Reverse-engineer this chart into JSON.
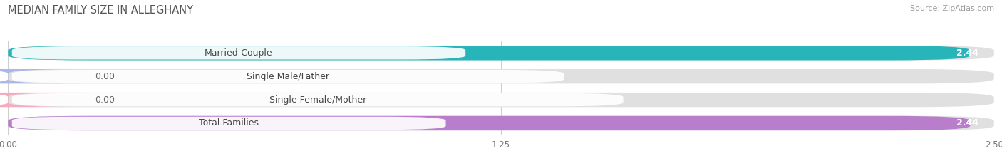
{
  "title": "MEDIAN FAMILY SIZE IN ALLEGHANY",
  "source": "Source: ZipAtlas.com",
  "categories": [
    "Married-Couple",
    "Single Male/Father",
    "Single Female/Mother",
    "Total Families"
  ],
  "values": [
    2.44,
    0.0,
    0.0,
    2.44
  ],
  "bar_colors": [
    "#28b5ba",
    "#aab8e8",
    "#f5aac0",
    "#b87ecc"
  ],
  "bar_bg_color": "#e0e0e0",
  "xlim": [
    0,
    2.5
  ],
  "xticks": [
    0.0,
    1.25,
    2.5
  ],
  "xtick_labels": [
    "0.00",
    "1.25",
    "2.50"
  ],
  "bg_color": "#ffffff",
  "bar_height": 0.62,
  "label_fontsize": 9,
  "title_fontsize": 10.5,
  "value_fontsize": 9,
  "source_fontsize": 8
}
